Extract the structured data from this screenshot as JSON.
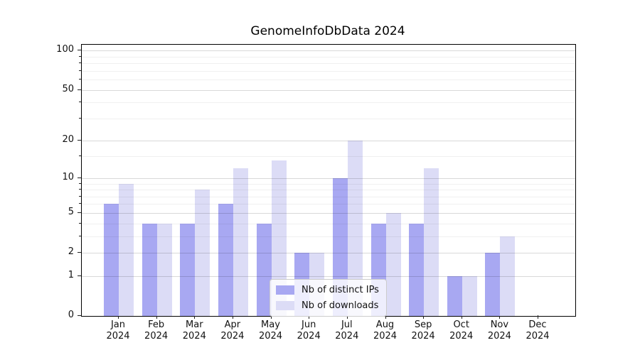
{
  "chart_data": {
    "type": "bar",
    "title": "GenomeInfoDbData 2024",
    "categories": [
      "Jan",
      "Feb",
      "Mar",
      "Apr",
      "May",
      "Jun",
      "Jul",
      "Aug",
      "Sep",
      "Oct",
      "Nov",
      "Dec"
    ],
    "x_year_label": "2024",
    "series": [
      {
        "name": "Nb of distinct IPs",
        "color": "#a8a8f2",
        "values": [
          6,
          4,
          4,
          6,
          4,
          2,
          10,
          4,
          4,
          1,
          2,
          0
        ]
      },
      {
        "name": "Nb of downloads",
        "color": "#dcdcf6",
        "values": [
          9,
          4,
          8,
          12,
          14,
          2,
          20,
          5,
          12,
          1,
          3,
          0
        ]
      }
    ],
    "xlabel": "",
    "ylabel": "",
    "yscale": "log1p",
    "ylim": [
      0,
      110.7
    ],
    "yticks_major": [
      0,
      1,
      2,
      5,
      10,
      20,
      50,
      100
    ],
    "yticks_minor": [
      3,
      4,
      6,
      7,
      8,
      9,
      15,
      30,
      40,
      60,
      70,
      80,
      90
    ],
    "grid": true,
    "legend_position": "lower-center-inside",
    "colors": {
      "axis": "#000000",
      "text": "#111111",
      "grid_major": "rgba(0,0,0,0.15)",
      "grid_minor": "rgba(0,0,0,0.06)",
      "legend_background": "rgba(255,255,255,0.8)",
      "legend_border": "#cccccc"
    }
  }
}
